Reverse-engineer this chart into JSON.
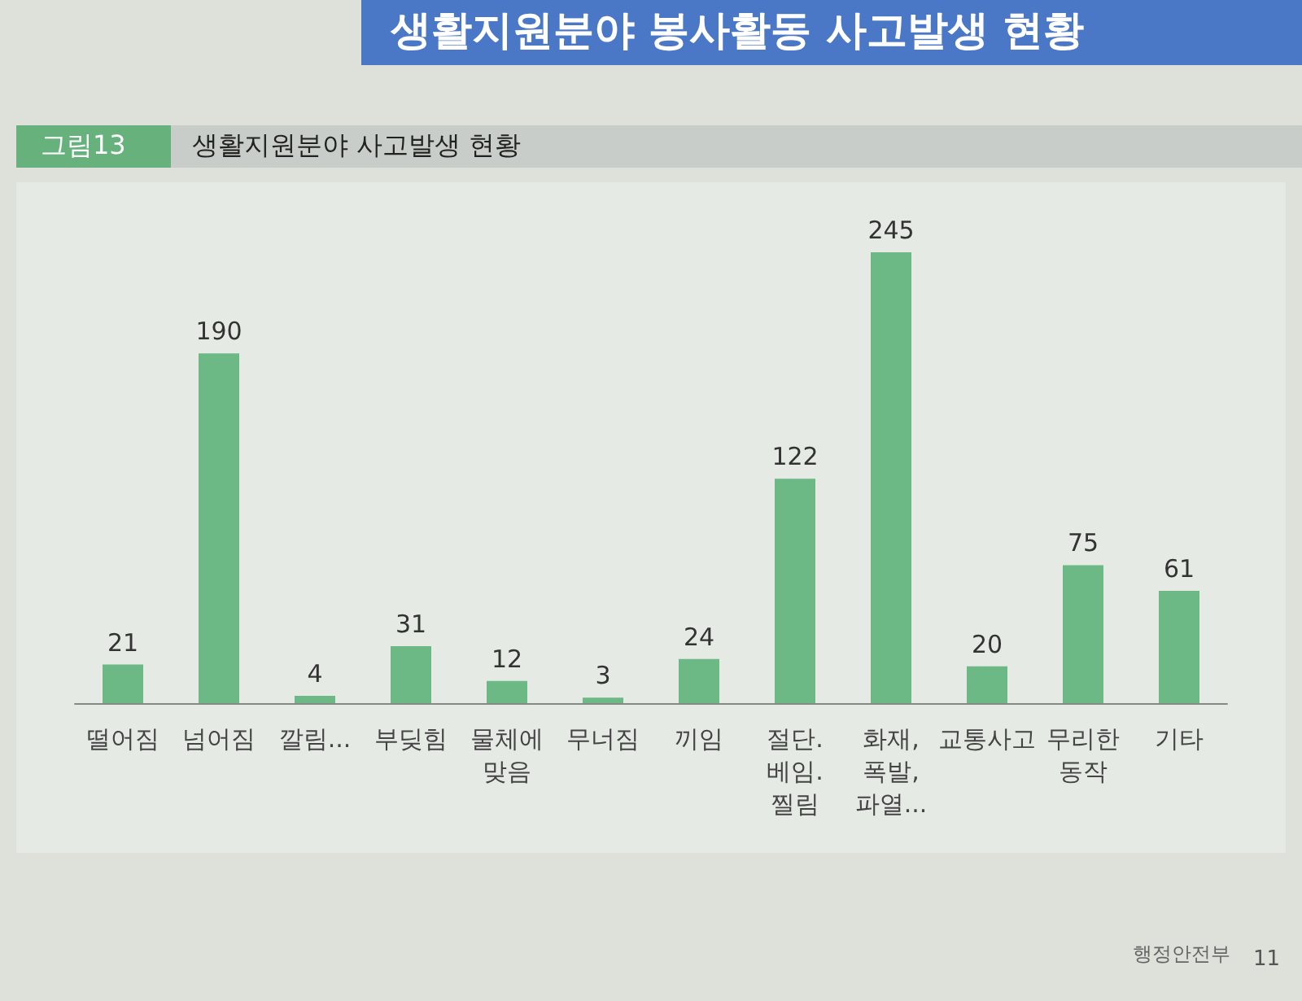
{
  "chart_data": {
    "type": "bar",
    "title": "생활지원분야 봉사활동 사고발생 현황",
    "subtitle": "생활지원분야 사고발생 현황",
    "annotations": [
      "그림13",
      "행정안전부",
      "11"
    ],
    "categories": [
      "떨어짐",
      "넘어짐",
      "깔림...",
      "부딪힘",
      "물체에 맞음",
      "무너짐",
      "끼임",
      "절단. 베임. 찔림",
      "화재, 폭발, 파열...",
      "교통사고",
      "무리한 동작",
      "기타"
    ],
    "values": [
      21,
      190,
      4,
      31,
      12,
      3,
      24,
      122,
      245,
      20,
      75,
      61
    ],
    "color": "#6cb985",
    "data_labels": true
  }
}
